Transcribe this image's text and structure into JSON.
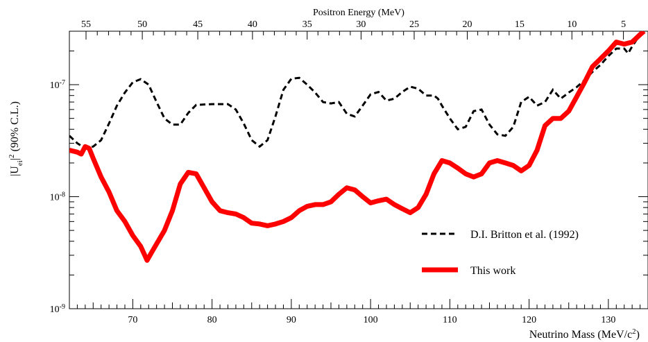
{
  "chart_data": {
    "type": "line",
    "x_axis": {
      "label": "Neutrino Mass (MeV/c",
      "label_sup": "2",
      "label_close": ")",
      "range": [
        62,
        135
      ],
      "ticks": [
        70,
        80,
        90,
        100,
        110,
        120,
        130
      ],
      "tick_labels": [
        "70",
        "80",
        "90",
        "100",
        "110",
        "120",
        "130"
      ]
    },
    "top_axis": {
      "label": "Positron Energy (MeV)",
      "ticks": [
        {
          "energy": 55,
          "mass": 64.1
        },
        {
          "energy": 50,
          "mass": 71.2
        },
        {
          "energy": 45,
          "mass": 78.2
        },
        {
          "energy": 40,
          "mass": 85.1
        },
        {
          "energy": 35,
          "mass": 92.0
        },
        {
          "energy": 30,
          "mass": 98.8
        },
        {
          "energy": 25,
          "mass": 105.5
        },
        {
          "energy": 20,
          "mass": 112.2
        },
        {
          "energy": 15,
          "mass": 118.8
        },
        {
          "energy": 10,
          "mass": 125.4
        },
        {
          "energy": 5,
          "mass": 131.9
        }
      ]
    },
    "y_axis": {
      "label_main": "|U",
      "label_sub": "ei",
      "label_sup": "2",
      "label_rest": " (90% C.L.)",
      "scale": "log",
      "range": [
        1e-09,
        3e-07
      ],
      "ticks": [
        {
          "value": 1e-09,
          "base": "10",
          "exp": "-9"
        },
        {
          "value": 1e-08,
          "base": "10",
          "exp": "-8"
        },
        {
          "value": 1e-07,
          "base": "10",
          "exp": "-7"
        }
      ]
    },
    "series": [
      {
        "name": "D.I. Britton et al. (1992)",
        "style": "dashed",
        "color": "#000000",
        "points": [
          [
            62,
            3.5e-08
          ],
          [
            63,
            3e-08
          ],
          [
            64,
            2.7e-08
          ],
          [
            65,
            2.8e-08
          ],
          [
            66,
            3.2e-08
          ],
          [
            67,
            4.5e-08
          ],
          [
            68,
            6.5e-08
          ],
          [
            69,
            8.5e-08
          ],
          [
            70,
            1.05e-07
          ],
          [
            71,
            1.12e-07
          ],
          [
            72,
            1e-07
          ],
          [
            73,
            7e-08
          ],
          [
            74,
            5e-08
          ],
          [
            75,
            4.4e-08
          ],
          [
            76,
            4.4e-08
          ],
          [
            77,
            5.6e-08
          ],
          [
            78,
            6.6e-08
          ],
          [
            80,
            6.7e-08
          ],
          [
            82,
            6.7e-08
          ],
          [
            83,
            6e-08
          ],
          [
            84,
            4.5e-08
          ],
          [
            85,
            3.2e-08
          ],
          [
            86,
            2.8e-08
          ],
          [
            87,
            3.2e-08
          ],
          [
            88,
            5.2e-08
          ],
          [
            89,
            9e-08
          ],
          [
            90,
            1.13e-07
          ],
          [
            91,
            1.15e-07
          ],
          [
            92,
            1e-07
          ],
          [
            93,
            8.5e-08
          ],
          [
            94,
            7e-08
          ],
          [
            95,
            6.8e-08
          ],
          [
            96,
            7e-08
          ],
          [
            97,
            5.5e-08
          ],
          [
            98,
            5.2e-08
          ],
          [
            99,
            6.5e-08
          ],
          [
            100,
            8.2e-08
          ],
          [
            101,
            8.6e-08
          ],
          [
            102,
            7.2e-08
          ],
          [
            103,
            7.5e-08
          ],
          [
            104,
            8.6e-08
          ],
          [
            105,
            9.6e-08
          ],
          [
            106,
            9.2e-08
          ],
          [
            107,
            8e-08
          ],
          [
            108,
            8e-08
          ],
          [
            108.5,
            7.5e-08
          ],
          [
            109,
            6.5e-08
          ],
          [
            110,
            5e-08
          ],
          [
            111,
            4e-08
          ],
          [
            112,
            4.2e-08
          ],
          [
            113,
            5.8e-08
          ],
          [
            114,
            6e-08
          ],
          [
            115,
            4.4e-08
          ],
          [
            116,
            3.6e-08
          ],
          [
            117,
            3.5e-08
          ],
          [
            118,
            4.2e-08
          ],
          [
            119,
            7e-08
          ],
          [
            120,
            7.8e-08
          ],
          [
            121,
            6.5e-08
          ],
          [
            122,
            7e-08
          ],
          [
            123,
            9e-08
          ],
          [
            124,
            7.5e-08
          ],
          [
            125,
            8.5e-08
          ],
          [
            126,
            9.5e-08
          ],
          [
            127,
            1.1e-07
          ],
          [
            128,
            1.3e-07
          ],
          [
            129,
            1.5e-07
          ],
          [
            130,
            1.8e-07
          ],
          [
            131,
            2.1e-07
          ],
          [
            132,
            2.1e-07
          ],
          [
            132.5,
            1.9e-07
          ],
          [
            133,
            2.2e-07
          ],
          [
            134,
            2.8e-07
          ],
          [
            134.6,
            3e-07
          ]
        ]
      },
      {
        "name": "This work",
        "style": "solid",
        "color": "#ff0000",
        "points": [
          [
            62,
            2.6e-08
          ],
          [
            63,
            2.5e-08
          ],
          [
            63.5,
            2.4e-08
          ],
          [
            64,
            2.8e-08
          ],
          [
            64.5,
            2.7e-08
          ],
          [
            65,
            2.2e-08
          ],
          [
            66,
            1.5e-08
          ],
          [
            67,
            1.1e-08
          ],
          [
            68,
            7.5e-09
          ],
          [
            69,
            6e-09
          ],
          [
            70,
            4.5e-09
          ],
          [
            71,
            3.6e-09
          ],
          [
            71.8,
            2.7e-09
          ],
          [
            72.5,
            3.3e-09
          ],
          [
            74,
            5e-09
          ],
          [
            75,
            7.5e-09
          ],
          [
            76,
            1.3e-08
          ],
          [
            77,
            1.65e-08
          ],
          [
            78,
            1.6e-08
          ],
          [
            79,
            1.2e-08
          ],
          [
            80,
            9e-09
          ],
          [
            81,
            7.5e-09
          ],
          [
            82,
            7.2e-09
          ],
          [
            83,
            7e-09
          ],
          [
            84,
            6.5e-09
          ],
          [
            85,
            5.8e-09
          ],
          [
            86,
            5.7e-09
          ],
          [
            87,
            5.5e-09
          ],
          [
            88,
            5.7e-09
          ],
          [
            89,
            6e-09
          ],
          [
            90,
            6.5e-09
          ],
          [
            91,
            7.5e-09
          ],
          [
            92,
            8.2e-09
          ],
          [
            93,
            8.5e-09
          ],
          [
            94,
            8.5e-09
          ],
          [
            95,
            9e-09
          ],
          [
            96,
            1.05e-08
          ],
          [
            97,
            1.2e-08
          ],
          [
            98,
            1.15e-08
          ],
          [
            99,
            1e-08
          ],
          [
            100,
            8.8e-09
          ],
          [
            101,
            9.2e-09
          ],
          [
            102,
            9.5e-09
          ],
          [
            103,
            8.5e-09
          ],
          [
            104,
            7.8e-09
          ],
          [
            105,
            7.2e-09
          ],
          [
            106,
            8e-09
          ],
          [
            107,
            1.05e-08
          ],
          [
            108,
            1.6e-08
          ],
          [
            109,
            2.1e-08
          ],
          [
            110,
            2e-08
          ],
          [
            111,
            1.8e-08
          ],
          [
            112,
            1.6e-08
          ],
          [
            113,
            1.5e-08
          ],
          [
            114,
            1.6e-08
          ],
          [
            115,
            2e-08
          ],
          [
            116,
            2.1e-08
          ],
          [
            117,
            2e-08
          ],
          [
            118,
            1.9e-08
          ],
          [
            119,
            1.7e-08
          ],
          [
            120,
            1.9e-08
          ],
          [
            121,
            2.6e-08
          ],
          [
            122,
            4.3e-08
          ],
          [
            123,
            5e-08
          ],
          [
            124,
            5e-08
          ],
          [
            125,
            5.8e-08
          ],
          [
            126,
            7.8e-08
          ],
          [
            127,
            1.05e-07
          ],
          [
            128,
            1.45e-07
          ],
          [
            129,
            1.7e-07
          ],
          [
            130,
            2e-07
          ],
          [
            131,
            2.4e-07
          ],
          [
            132,
            2.3e-07
          ],
          [
            133,
            2.4e-07
          ],
          [
            134,
            2.8e-07
          ],
          [
            134.5,
            3e-07
          ]
        ]
      }
    ],
    "legend": {
      "position": "bottom-right",
      "items": [
        "D.I. Britton et al. (1992)",
        "This work"
      ]
    },
    "grid": false
  }
}
